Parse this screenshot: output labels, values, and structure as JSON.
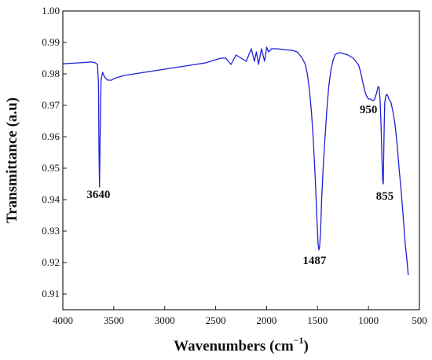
{
  "chart_data": {
    "type": "line",
    "title": "",
    "xlabel": "Wavenumbers (cm",
    "xlabel_sup": "−1",
    "xlabel_close": ")",
    "ylabel": "Transmittance (a.u)",
    "xlim": [
      4000,
      500
    ],
    "ylim": [
      0.905,
      1.0
    ],
    "x_reversed": true,
    "grid": false,
    "legend": "none",
    "line_color": "#1f1fd6",
    "x_ticks": [
      "4000",
      "3500",
      "3000",
      "2500",
      "2000",
      "1500",
      "1000",
      "500"
    ],
    "y_ticks": [
      "0.91",
      "0.92",
      "0.93",
      "0.94",
      "0.95",
      "0.96",
      "0.97",
      "0.98",
      "0.99",
      "1.00"
    ],
    "series": [
      {
        "x": [
          4000,
          3900,
          3800,
          3720,
          3680,
          3660,
          3650,
          3645,
          3640,
          3635,
          3625,
          3610,
          3590,
          3560,
          3520,
          3500,
          3450,
          3400,
          3300,
          3200,
          3100,
          3000,
          2900,
          2800,
          2700,
          2600,
          2500,
          2450,
          2400,
          2350,
          2300,
          2250,
          2200,
          2150,
          2120,
          2100,
          2080,
          2050,
          2020,
          2000,
          1980,
          1950,
          1900,
          1850,
          1800,
          1750,
          1700,
          1650,
          1620,
          1600,
          1580,
          1560,
          1540,
          1520,
          1505,
          1495,
          1487,
          1480,
          1470,
          1460,
          1445,
          1430,
          1410,
          1390,
          1370,
          1350,
          1330,
          1310,
          1290,
          1270,
          1250,
          1220,
          1200,
          1150,
          1100,
          1080,
          1060,
          1040,
          1020,
          1000,
          980,
          960,
          950,
          940,
          920,
          905,
          895,
          885,
          875,
          865,
          860,
          855,
          850,
          845,
          840,
          830,
          820,
          810,
          800,
          780,
          760,
          740,
          720,
          700,
          680,
          660,
          640,
          620,
          610
        ],
        "y": [
          0.9832,
          0.9834,
          0.9836,
          0.9838,
          0.9835,
          0.983,
          0.977,
          0.955,
          0.944,
          0.958,
          0.978,
          0.9805,
          0.979,
          0.978,
          0.978,
          0.9785,
          0.979,
          0.9795,
          0.98,
          0.9805,
          0.981,
          0.9815,
          0.982,
          0.9825,
          0.983,
          0.9835,
          0.9845,
          0.985,
          0.985,
          0.983,
          0.986,
          0.985,
          0.984,
          0.988,
          0.984,
          0.987,
          0.983,
          0.988,
          0.984,
          0.9885,
          0.987,
          0.988,
          0.988,
          0.9878,
          0.9876,
          0.9875,
          0.987,
          0.985,
          0.983,
          0.98,
          0.975,
          0.968,
          0.958,
          0.945,
          0.933,
          0.926,
          0.924,
          0.925,
          0.93,
          0.94,
          0.95,
          0.958,
          0.968,
          0.976,
          0.981,
          0.984,
          0.986,
          0.9865,
          0.9867,
          0.9867,
          0.9865,
          0.9862,
          0.986,
          0.985,
          0.983,
          0.981,
          0.978,
          0.975,
          0.973,
          0.972,
          0.972,
          0.9715,
          0.9715,
          0.972,
          0.974,
          0.976,
          0.9755,
          0.971,
          0.962,
          0.95,
          0.946,
          0.945,
          0.955,
          0.965,
          0.971,
          0.973,
          0.9735,
          0.973,
          0.972,
          0.971,
          0.968,
          0.964,
          0.958,
          0.95,
          0.943,
          0.935,
          0.926,
          0.92,
          0.916
        ]
      }
    ],
    "annotations": [
      {
        "text": "3640",
        "x": 3650,
        "y": 0.9405
      },
      {
        "text": "1487",
        "x": 1530,
        "y": 0.9195
      },
      {
        "text": "950",
        "x": 1000,
        "y": 0.9675
      },
      {
        "text": "855",
        "x": 840,
        "y": 0.94
      }
    ]
  }
}
